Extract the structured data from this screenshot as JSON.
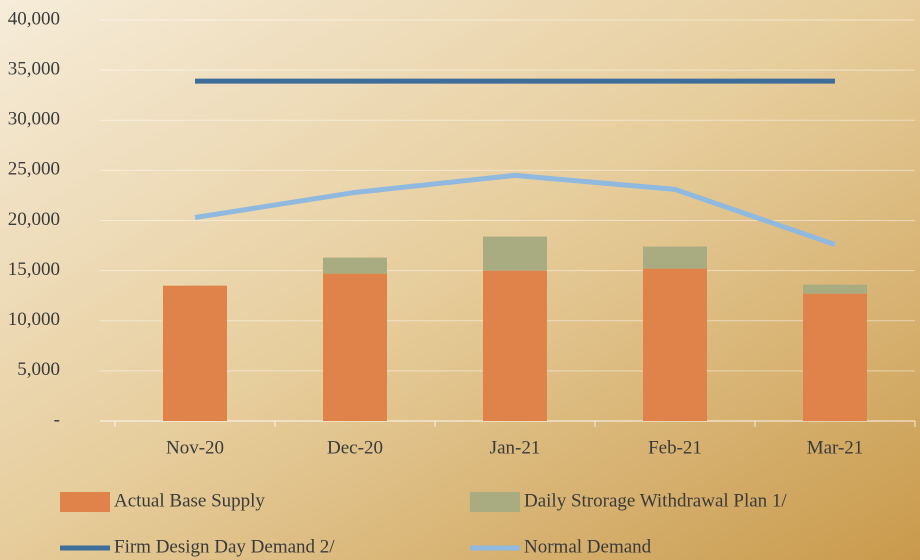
{
  "chart_data": {
    "type": "combo",
    "categories": [
      "Nov-20",
      "Dec-20",
      "Jan-21",
      "Feb-21",
      "Mar-21"
    ],
    "series": [
      {
        "name": "Actual Base Supply",
        "type": "bar",
        "color": "#e0834a",
        "values": [
          13500,
          14700,
          15000,
          15200,
          12700
        ]
      },
      {
        "name": "Daily Strorage Withdrawal Plan 1/",
        "type": "bar",
        "color": "#a8ac80",
        "values": [
          0,
          1600,
          3400,
          2200,
          900
        ]
      },
      {
        "name": "Firm Design Day Demand 2/",
        "type": "line",
        "color": "#3d6d98",
        "values": [
          33900,
          33900,
          33900,
          33900,
          33900
        ]
      },
      {
        "name": "Normal Demand",
        "type": "line",
        "color": "#8fb9de",
        "values": [
          20300,
          22800,
          24500,
          23100,
          17600
        ]
      }
    ],
    "stacked": true,
    "ylim": [
      0,
      40000
    ],
    "yticks": [
      {
        "value": 0,
        "label": "-"
      },
      {
        "value": 5000,
        "label": "5,000"
      },
      {
        "value": 10000,
        "label": "10,000"
      },
      {
        "value": 15000,
        "label": "15,000"
      },
      {
        "value": 20000,
        "label": "20,000"
      },
      {
        "value": 25000,
        "label": "25,000"
      },
      {
        "value": 30000,
        "label": "30,000"
      },
      {
        "value": 35000,
        "label": "35,000"
      },
      {
        "value": 40000,
        "label": "40,000"
      }
    ],
    "grid": true
  }
}
